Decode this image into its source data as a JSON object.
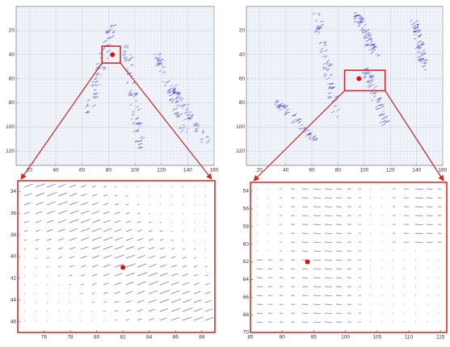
{
  "chart_data": [
    {
      "type": "quiver",
      "xlim": [
        10,
        160
      ],
      "ylim": [
        0,
        132
      ],
      "y_reversed": true,
      "xticks": [
        20,
        40,
        60,
        80,
        100,
        120,
        140,
        160
      ],
      "yticks": [
        20,
        40,
        60,
        80,
        100,
        120
      ],
      "grid": true,
      "arrow_color": "#3b3bd0",
      "point": {
        "x": 83,
        "y": 40,
        "color": "#e01010"
      },
      "zoom_box": {
        "xlim": [
          75,
          89
        ],
        "ylim": [
          33,
          47
        ],
        "color": "#d42020"
      }
    },
    {
      "type": "quiver",
      "xlim": [
        10,
        160
      ],
      "ylim": [
        0,
        132
      ],
      "y_reversed": true,
      "xticks": [
        20,
        40,
        60,
        80,
        100,
        120,
        140,
        160
      ],
      "yticks": [
        20,
        40,
        60,
        80,
        100,
        120
      ],
      "grid": true,
      "arrow_color": "#3b3bd0",
      "point": {
        "x": 96,
        "y": 60,
        "color": "#e01010"
      },
      "zoom_box": {
        "xlim": [
          85,
          116
        ],
        "ylim": [
          53,
          70
        ],
        "color": "#d42020"
      }
    },
    {
      "type": "quiver",
      "xlim": [
        74,
        89
      ],
      "ylim": [
        33,
        47
      ],
      "y_reversed": true,
      "xticks": [
        76,
        78,
        80,
        82,
        84,
        86,
        88
      ],
      "yticks": [
        34,
        36,
        38,
        40,
        42,
        44,
        46
      ],
      "grid": false,
      "arrow_color": "#3b3bd0",
      "point": {
        "x": 82,
        "y": 41,
        "color": "#e01010"
      },
      "frame_color": "#d42020"
    },
    {
      "type": "quiver",
      "xlim": [
        85,
        116
      ],
      "ylim": [
        53,
        70
      ],
      "y_reversed": true,
      "xticks": [
        85,
        90,
        95,
        100,
        105,
        110,
        115
      ],
      "yticks": [
        54,
        56,
        58,
        60,
        62,
        64,
        66,
        68,
        70
      ],
      "grid": false,
      "arrow_color": "#3b3bd0",
      "point": {
        "x": 94,
        "y": 62,
        "color": "#e01010"
      },
      "frame_color": "#d42020"
    }
  ]
}
